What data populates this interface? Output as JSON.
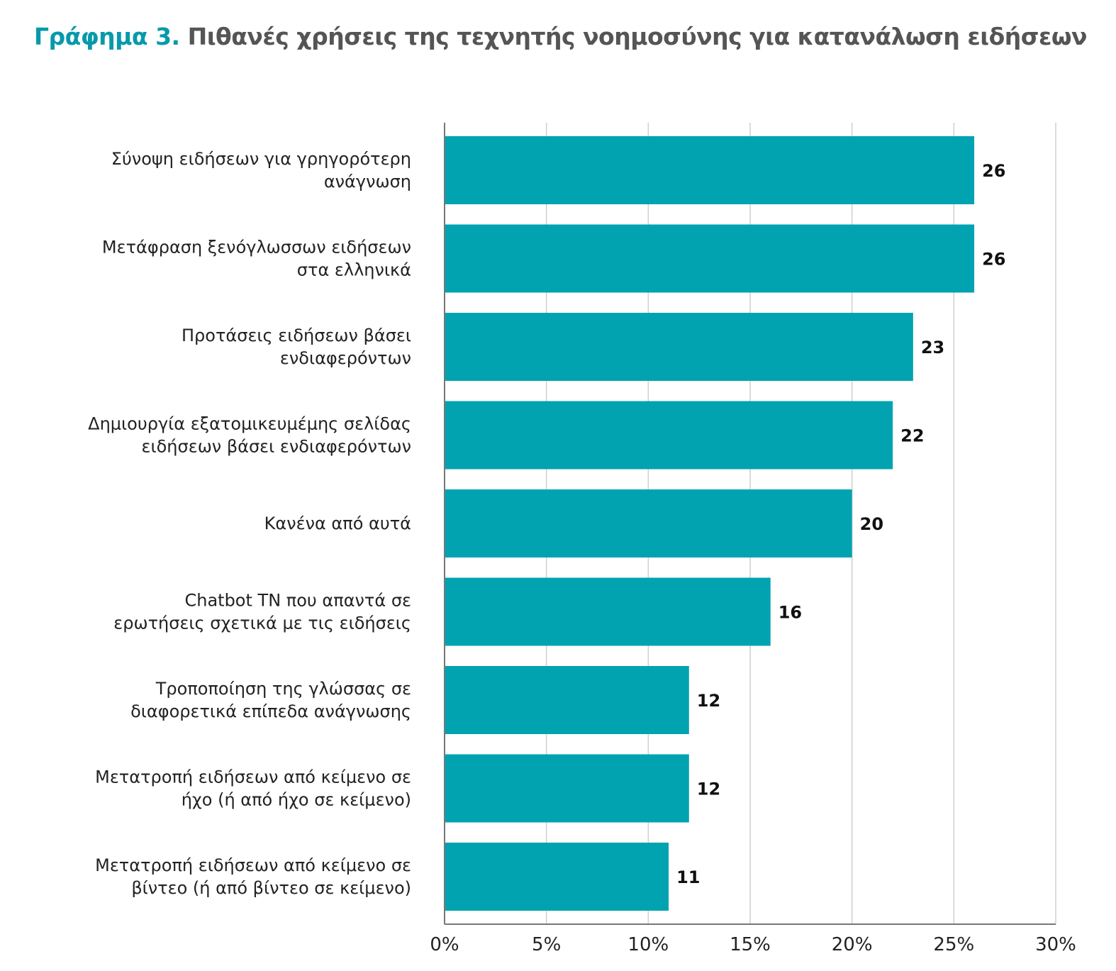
{
  "chart_data": {
    "type": "bar",
    "orientation": "horizontal",
    "title_lead": "Γράφημα 3.",
    "title": "Πιθανές χρήσεις της τεχνητής νοημοσύνης για κατανάλωση ειδήσεων",
    "categories": [
      [
        "Σύνοψη ειδήσεων για γρηγορότερη",
        "ανάγνωση"
      ],
      [
        "Μετάφραση ξενόγλωσσων ειδήσεων",
        "στα ελληνικά"
      ],
      [
        "Προτάσεις ειδήσεων βάσει",
        "ενδιαφερόντων"
      ],
      [
        "Δημιουργία εξατομικευμέμης σελίδας",
        "ειδήσεων βάσει ενδιαφερόντων"
      ],
      [
        "Κανένα από αυτά"
      ],
      [
        "Chatbot ΤΝ που απαντά σε",
        "ερωτήσεις σχετικά με τις ειδήσεις"
      ],
      [
        "Τροποποίηση της γλώσσας σε",
        "διαφορετικά επίπεδα ανάγνωσης"
      ],
      [
        "Μετατροπή ειδήσεων από κείμενο σε",
        "ήχο (ή από ήχο σε κείμενο)"
      ],
      [
        "Μετατροπή ειδήσεων από κείμενο σε",
        "βίντεο (ή από βίντεο σε κείμενο)"
      ]
    ],
    "values": [
      26,
      26,
      23,
      22,
      20,
      16,
      12,
      12,
      11
    ],
    "xlim": [
      0,
      30
    ],
    "xticks": [
      "0%",
      "5%",
      "10%",
      "15%",
      "20%",
      "25%",
      "30%"
    ],
    "xtick_values": [
      0,
      5,
      10,
      15,
      20,
      25,
      30
    ],
    "grid": true,
    "bar_color": "#02a3b1",
    "title_lead_color": "#069aa9",
    "title_color": "#555555"
  }
}
